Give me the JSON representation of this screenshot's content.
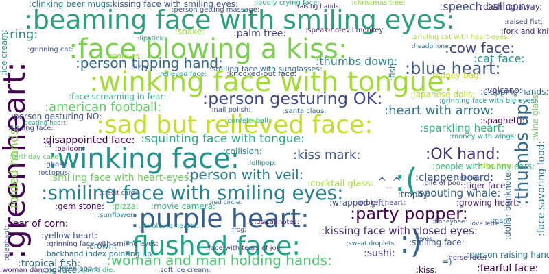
{
  "word_cloud": {
    "words": [
      {
        "text": ":beaming face with smiling eyes:",
        "color": "#2ca178"
      },
      {
        "text": ":face blowing a kiss:",
        "color": "#7ccf4e"
      },
      {
        "text": ":winking face with tongue:",
        "color": "#a2da37"
      },
      {
        "text": ":sad but relieved face:",
        "color": "#c0df25"
      },
      {
        "text": ":winking face:",
        "color": "#21918c"
      },
      {
        "text": ":purple heart:",
        "color": "#355e8d"
      },
      {
        "text": ":flushed face:",
        "color": "#20a386"
      },
      {
        "text": ":green heart:",
        "color": "#440154"
      },
      {
        "text": ":smiling face with smiling eyes:",
        "color": "#26828e"
      },
      {
        "text": ":blue heart:",
        "color": "#3b528b"
      },
      {
        "text": ":person gesturing OK:",
        "color": "#3e4a89"
      },
      {
        "text": ":thumbs up:",
        "color": "#30698e"
      },
      {
        "text": ":party popper:",
        "color": "#440154"
      },
      {
        "text": ":OK hand:",
        "color": "#46327e"
      },
      {
        "text": ":woman and man holding hands:",
        "color": "#4ac16d"
      },
      {
        "text": ":(",
        "color": "#1fa088"
      },
      {
        "text": ":)",
        "color": "#31688e"
      },
      {
        "text": ":cow face:",
        "color": "#3f4788"
      },
      {
        "text": ":person tipping hand:",
        "color": "#31688e"
      },
      {
        "text": ":heart with arrow:",
        "color": "#2c728e"
      },
      {
        "text": ":squinting face with tongue:",
        "color": "#27ad81"
      },
      {
        "text": ":kiss mark:",
        "color": "#3b528b"
      },
      {
        "text": ":person with veil:",
        "color": "#2a788e"
      },
      {
        "text": ":american football:",
        "color": "#5ec962"
      },
      {
        "text": ":disappointed face:",
        "color": "#440154"
      },
      {
        "text": ":smiling face with heart-eyes:",
        "color": "#6ccd5a"
      },
      {
        "text": ":kissing face with closed eyes:",
        "color": "#472c7a"
      },
      {
        "text": ":folded hands:",
        "color": "#84d44b"
      },
      {
        "text": ":ring:",
        "color": "#23888e"
      },
      {
        "text": ":speech balloon:",
        "color": "#3e4a89"
      },
      {
        "text": ":palm tree:",
        "color": "#414487"
      },
      {
        "text": ":kissing face with smiling eyes:",
        "color": "#3b528b"
      },
      {
        "text": ":dashing away:",
        "color": "#453781"
      },
      {
        "text": ":speak-no-evil monkey:",
        "color": "#482878"
      },
      {
        "text": ":thumbs down:",
        "color": "#25858e"
      },
      {
        "text": ":smiling face with sunglasses:",
        "color": "#31688e"
      },
      {
        "text": ":cat face:",
        "color": "#1f958b"
      },
      {
        "text": ":face screaming in fear:",
        "color": "#29af7f"
      },
      {
        "text": ":sparkling heart:",
        "color": "#2db27d"
      },
      {
        "text": ":spouting whale:",
        "color": "#355f8d"
      },
      {
        "text": ":clapper board:",
        "color": "#3b528b"
      },
      {
        "text": ":ear of corn:",
        "color": "#440154"
      },
      {
        "text": ":gem stone:",
        "color": "#46085c"
      },
      {
        "text": ":pizza:",
        "color": "#52c569"
      },
      {
        "text": ":movie camera:",
        "color": "#2db27d"
      },
      {
        "text": ":yellow heart:",
        "color": "#3e4a89"
      },
      {
        "text": ":crown:",
        "color": "#2a788e"
      },
      {
        "text": ":tropical fish:",
        "color": "#31688e"
      },
      {
        "text": ":sushi:",
        "color": "#46327e"
      },
      {
        "text": ":smiling face:",
        "color": "#3b528b"
      },
      {
        "text": ":fearful face:",
        "color": "#440154"
      },
      {
        "text": ":face savoring food:",
        "color": "#2c728e"
      },
      {
        "text": ":wrapped gift:",
        "color": "#3b528b"
      },
      {
        "text": ":broken heart:",
        "color": "#46327e"
      },
      {
        "text": ":santa claus:",
        "color": "#31688e"
      },
      {
        "text": ":fork and knife:",
        "color": "#482878"
      },
      {
        "text": ":raised fist:",
        "color": "#3e4a89"
      },
      {
        "text": ":grinning face with big eyes:",
        "color": "#1f968b"
      },
      {
        "text": ":money with wings:",
        "color": "#1fa088"
      },
      {
        "text": ":people with bunny ears:",
        "color": "#35b779"
      },
      {
        "text": ":tiger face:",
        "color": "#472c7a"
      },
      {
        "text": ":growing heart:",
        "color": "#482475"
      },
      {
        "text": ":dollar banknote:",
        "color": "#31688e"
      },
      {
        "text": ":person raising hand:",
        "color": "#2a788e"
      },
      {
        "text": ":horse face:",
        "color": "#414487"
      },
      {
        "text": ":backhand index pointing up:",
        "color": "#2c728e"
      },
      {
        "text": ":grinning face with smiling eyes:",
        "color": "#3e4a89"
      },
      {
        "text": ":face with tears of joy:",
        "color": "#453781"
      },
      {
        "text": ":revolving hearts:",
        "color": "#21918c"
      },
      {
        "text": ":sunflower:",
        "color": "#277f8e"
      },
      {
        "text": ":musical notes:",
        "color": "#472d7b"
      },
      {
        "text": ":collision:",
        "color": "#24868e"
      },
      {
        "text": ":cocktail glass:",
        "color": "#a0da39"
      },
      {
        "text": ":trophy:",
        "color": "#39568c"
      },
      {
        "text": ":tennis:",
        "color": "#38598c"
      },
      {
        "text": ":nail polish:",
        "color": "#3b528b"
      },
      {
        "text": ":lipstick:",
        "color": "#1f9e89"
      },
      {
        "text": ":snake:",
        "color": "#90d743"
      },
      {
        "text": ":clinking beer mugs:",
        "color": "#297b8e"
      },
      {
        "text": ":grinning cat:",
        "color": "#3b528b"
      },
      {
        "text": ":person gesturing NO:",
        "color": "#3b528b"
      },
      {
        "text": ":kissing face:",
        "color": "#3e4a89"
      },
      {
        "text": ":fish:",
        "color": "#23898e"
      },
      {
        "text": ":clapping hands:",
        "color": "#2e6f8e"
      },
      {
        "text": ":spaghetti:",
        "color": "#440154"
      },
      {
        "text": ":Japanese dolls:",
        "color": "#addc30"
      },
      {
        "text": ":volcano:",
        "color": "#46327e"
      },
      {
        "text": ":wine glass:",
        "color": "#6ece58"
      },
      {
        "text": ":ice cream:",
        "color": "#1fa187"
      },
      {
        "text": ":birthday cake:",
        "color": "#5ec962"
      },
      {
        "text": ":dog face:",
        "color": "#b5de2b"
      },
      {
        "text": ":elephant:",
        "color": "#3b528b"
      },
      {
        "text": ":man:",
        "color": "#2a788e"
      },
      {
        "text": ":eyes:",
        "color": "#38598c"
      },
      {
        "text": ":kiss:",
        "color": "#440154"
      },
      {
        "text": ":money bag:",
        "color": "#c8e020"
      },
      {
        "text": ":knocked-out face:",
        "color": "#3e4a89"
      },
      {
        "text": ":relieved face:",
        "color": "#1f968b"
      },
      {
        "text": ":sparkles:",
        "color": "#9bd93c"
      },
      {
        "text": ":dizzy:",
        "color": "#3b528b"
      },
      {
        "text": ":confetti ball:",
        "color": "#22a884"
      },
      {
        "text": ":pile of poo:",
        "color": "#3e4a89"
      },
      {
        "text": ":pig face:",
        "color": "#1f958b"
      },
      {
        "text": ":soft ice cream:",
        "color": "#3b528b"
      },
      {
        "text": ":game die:",
        "color": "#35b779"
      },
      {
        "text": ":green apple:",
        "color": "#3b528b"
      },
      {
        "text": ":woman dancing:",
        "color": "#482677"
      },
      {
        "text": ":balloon:",
        "color": "#440154"
      },
      {
        "text": ":ghost:",
        "color": "#3e4a89"
      },
      {
        "text": ":lollipop:",
        "color": "#24878e"
      },
      {
        "text": ":octopus:",
        "color": "#3b528b"
      },
      {
        "text": ":beating heart:",
        "color": "#22a785"
      },
      {
        "text": ":loudly crying face:",
        "color": "#22a884"
      },
      {
        "text": ":christmas tree:",
        "color": "#90d743"
      },
      {
        "text": ":raising hands:",
        "color": "#46327e"
      },
      {
        "text": ":person getting massage:",
        "color": "#3b528b"
      },
      {
        "text": ":headphone:",
        "color": "#2c728e"
      },
      {
        "text": ":smiling cat with heart-eyes:",
        "color": "#a8db34"
      },
      {
        "text": ":red circle:",
        "color": "#2c728e"
      },
      {
        "text": ":frog:",
        "color": "#3b528b"
      },
      {
        "text": ":credit card:",
        "color": "#3b528b"
      },
      {
        "text": ":sweat droplets:",
        "color": "#31688e"
      },
      {
        "text": ":honeybee:",
        "color": "#3b528b"
      },
      {
        "text": ":love letter:",
        "color": "#3b528b"
      },
      {
        "text": "^_^",
        "color": "#3e4a89"
      },
      {
        "text": ":3",
        "color": "#46327e"
      },
      {
        "text": "=)",
        "color": "#31688e"
      }
    ]
  }
}
